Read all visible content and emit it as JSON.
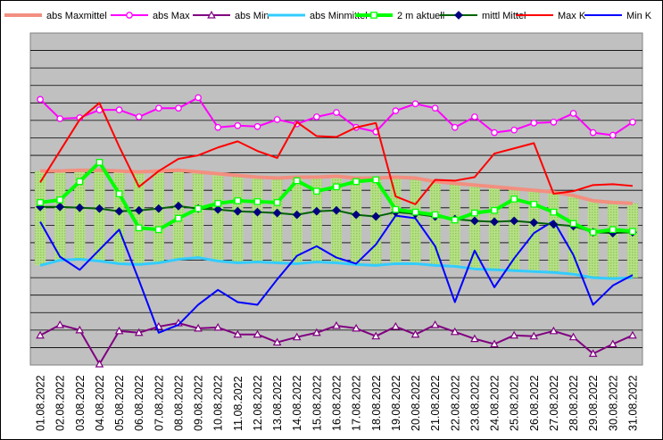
{
  "chart_data": {
    "type": "line",
    "title": "",
    "xlabel": "",
    "ylabel": "",
    "ylim": [
      0,
      19
    ],
    "grid": true,
    "legend": "top",
    "categories": [
      "01.08.2022",
      "02.08.2022",
      "03.08.2022",
      "04.08.2022",
      "05.08.2022",
      "06.08.2022",
      "07.08.2022",
      "08.08.2022",
      "09.08.2022",
      "10.08.2022",
      "11.08.2022",
      "12.08.2022",
      "13.08.2022",
      "14.08.2022",
      "15.08.2022",
      "16.08.2022",
      "17.08.2022",
      "18.08.2022",
      "19.08.2022",
      "20.08.2022",
      "21.08.2022",
      "22.08.2022",
      "23.08.2022",
      "24.08.2022",
      "25.08.2022",
      "26.08.2022",
      "27.08.2022",
      "28.08.2022",
      "29.08.2022",
      "30.08.2022",
      "31.08.2022"
    ],
    "band": {
      "from_series": "abs Minmittel",
      "to_series": "abs Maxmittel"
    },
    "series": [
      {
        "name": "abs Maxmittel",
        "color": "#f28f80",
        "marker": "none",
        "width": 4,
        "values": [
          11.1,
          11.1,
          11.15,
          11.15,
          11.1,
          11.05,
          11.1,
          11.15,
          11.05,
          10.95,
          10.85,
          10.75,
          10.7,
          10.75,
          10.75,
          10.8,
          10.7,
          10.7,
          10.75,
          10.7,
          10.5,
          10.4,
          10.3,
          10.2,
          10.1,
          10.0,
          9.9,
          9.7,
          9.4,
          9.3,
          9.25
        ]
      },
      {
        "name": "abs Max",
        "color": "#ff00ff",
        "marker": "circle",
        "width": 2,
        "values": [
          15.2,
          14.1,
          14.15,
          14.6,
          14.6,
          14.2,
          14.7,
          14.7,
          15.3,
          13.6,
          13.7,
          13.65,
          14.05,
          13.8,
          14.2,
          14.45,
          13.6,
          13.35,
          14.55,
          14.95,
          14.7,
          13.6,
          14.2,
          13.3,
          13.45,
          13.85,
          13.9,
          14.4,
          13.3,
          13.15,
          13.9
        ]
      },
      {
        "name": "abs Min",
        "color": "#800080",
        "marker": "triangle",
        "width": 2,
        "values": [
          1.7,
          2.3,
          2.0,
          0.05,
          1.95,
          1.85,
          2.2,
          2.4,
          2.1,
          2.15,
          1.75,
          1.75,
          1.3,
          1.6,
          1.85,
          2.25,
          2.1,
          1.65,
          2.2,
          1.75,
          2.3,
          1.9,
          1.5,
          1.2,
          1.7,
          1.65,
          1.95,
          1.6,
          0.65,
          1.2,
          1.7
        ]
      },
      {
        "name": "abs Minmittel",
        "color": "#33ccff",
        "marker": "none",
        "width": 3,
        "values": [
          5.7,
          6.0,
          6.05,
          5.95,
          5.8,
          5.75,
          5.85,
          6.05,
          6.15,
          5.95,
          5.85,
          5.9,
          5.85,
          5.8,
          5.9,
          5.85,
          5.75,
          5.7,
          5.8,
          5.8,
          5.7,
          5.65,
          5.5,
          5.45,
          5.4,
          5.35,
          5.3,
          5.2,
          5.0,
          4.95,
          5.0
        ]
      },
      {
        "name": "2 m aktuell",
        "color": "#00ff00",
        "marker": "square",
        "width": 4,
        "values": [
          9.3,
          9.45,
          10.5,
          11.6,
          9.8,
          7.85,
          7.75,
          8.4,
          8.95,
          9.25,
          9.4,
          9.35,
          9.3,
          10.55,
          9.95,
          10.2,
          10.5,
          10.6,
          8.9,
          8.75,
          8.6,
          8.3,
          8.7,
          8.85,
          9.5,
          9.2,
          8.75,
          8.1,
          7.6,
          7.75,
          7.65
        ]
      },
      {
        "name": "mittl Mittel",
        "color": "#006400",
        "marker": "diamond",
        "width": 2,
        "values": [
          9.05,
          9.05,
          9.0,
          8.95,
          8.8,
          8.85,
          8.95,
          9.1,
          8.95,
          8.9,
          8.8,
          8.75,
          8.7,
          8.6,
          8.8,
          8.85,
          8.6,
          8.5,
          8.75,
          8.65,
          8.5,
          8.35,
          8.25,
          8.2,
          8.25,
          8.15,
          8.05,
          7.95,
          7.6,
          7.55,
          7.6
        ]
      },
      {
        "name": "Max K",
        "color": "#ff0000",
        "marker": "none",
        "width": 2,
        "values": [
          10.45,
          12.25,
          14.05,
          15.0,
          12.5,
          10.2,
          11.1,
          11.8,
          12.0,
          12.45,
          12.8,
          12.25,
          11.85,
          13.9,
          13.1,
          13.05,
          13.6,
          13.85,
          9.65,
          9.2,
          10.6,
          10.55,
          10.75,
          12.1,
          12.4,
          12.7,
          9.8,
          9.95,
          10.3,
          10.35,
          10.25
        ]
      },
      {
        "name": "Min K",
        "color": "#0000ff",
        "marker": "none",
        "width": 2,
        "values": [
          8.2,
          6.2,
          5.45,
          6.6,
          7.75,
          4.85,
          1.85,
          2.3,
          3.45,
          4.3,
          3.6,
          3.45,
          4.9,
          6.25,
          6.8,
          6.15,
          5.8,
          6.9,
          8.55,
          8.4,
          6.8,
          3.6,
          6.55,
          4.45,
          6.1,
          7.55,
          8.25,
          6.3,
          3.45,
          4.55,
          5.15
        ]
      }
    ]
  }
}
